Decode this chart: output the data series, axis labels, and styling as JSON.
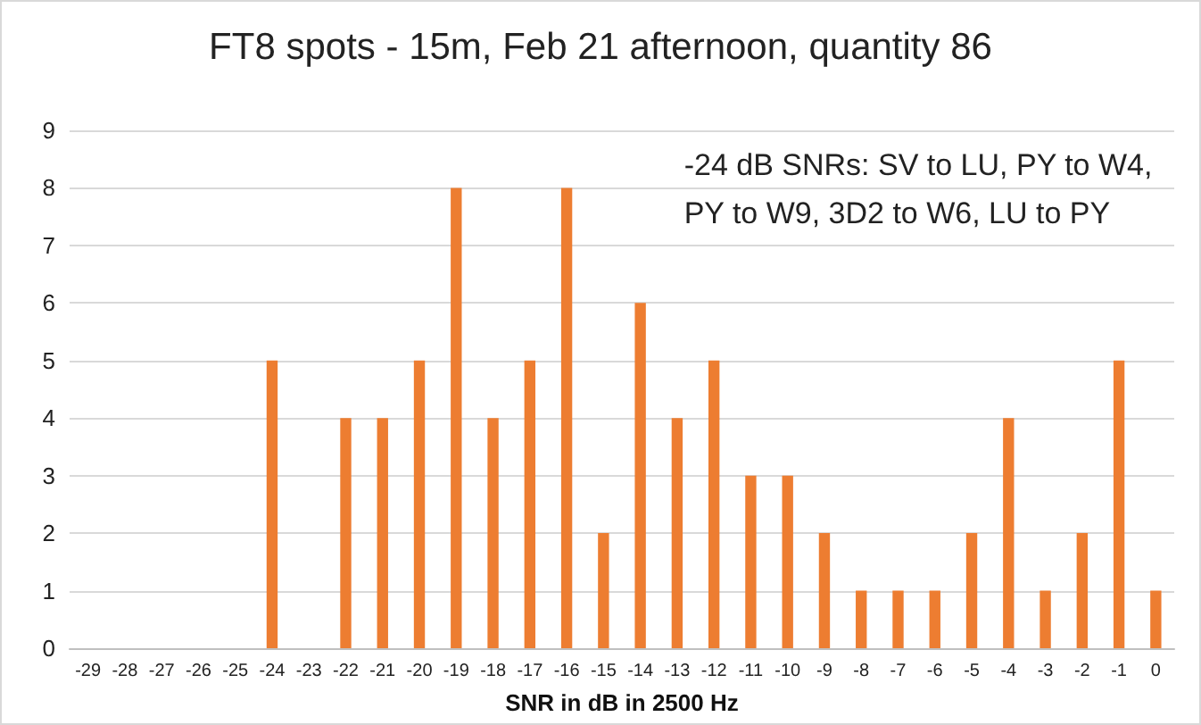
{
  "chart_data": {
    "type": "bar",
    "title": "FT8 spots - 15m, Feb 21 afternoon, quantity 86",
    "xlabel": "SNR in dB in 2500 Hz",
    "categories": [
      "-29",
      "-28",
      "-27",
      "-26",
      "-25",
      "-24",
      "-23",
      "-22",
      "-21",
      "-20",
      "-19",
      "-18",
      "-17",
      "-16",
      "-15",
      "-14",
      "-13",
      "-12",
      "-11",
      "-10",
      "-9",
      "-8",
      "-7",
      "-6",
      "-5",
      "-4",
      "-3",
      "-2",
      "-1",
      "0"
    ],
    "values": [
      0,
      0,
      0,
      0,
      0,
      5,
      0,
      4,
      4,
      5,
      8,
      4,
      5,
      8,
      2,
      6,
      4,
      5,
      3,
      3,
      2,
      1,
      1,
      1,
      2,
      4,
      1,
      2,
      5,
      1
    ],
    "color": "#ed7d31",
    "ylim": [
      0,
      9
    ],
    "yticks": [
      0,
      1,
      2,
      3,
      4,
      5,
      6,
      7,
      8,
      9
    ],
    "grid": "y",
    "annotations": [
      "-24 dB SNRs: SV to LU, PY to W4,\nPY to W9, 3D2 to W6, LU to PY"
    ]
  }
}
